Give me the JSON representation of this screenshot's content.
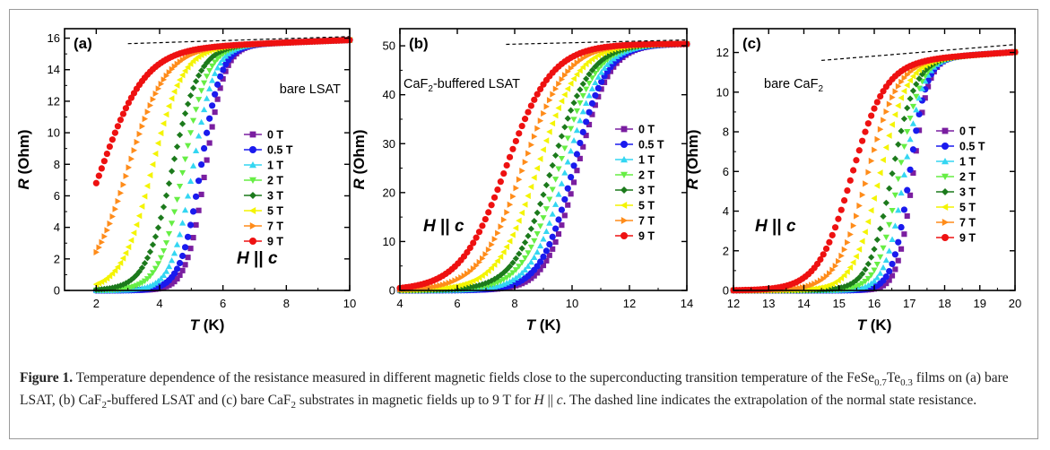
{
  "caption": {
    "label": "Figure 1.",
    "text": "Temperature dependence of the resistance measured in different magnetic fields close to the superconducting transition temperature of the FeSe0.7Te0.3 films on (a) bare LSAT, (b) CaF2-buffered LSAT and (c) bare CaF2 substrates in magnetic fields up to 9 T for H || c. The dashed line indicates the extrapolation of the normal state resistance."
  },
  "colors": {
    "0 T": "#7a1ea0",
    "0.5 T": "#1a1aee",
    "1 T": "#33d6f2",
    "2 T": "#66ee44",
    "3 T": "#1c7a1c",
    "5 T": "#f4f400",
    "7 T": "#ff8c1a",
    "9 T": "#ee1111"
  },
  "chart_data": [
    {
      "type": "scatter",
      "panel": "(a)",
      "annotation": "bare LSAT",
      "field_label": "H || c",
      "xlabel": "T (K)",
      "ylabel": "R (Ohm)",
      "xlim": [
        1,
        10
      ],
      "ylim": [
        0,
        16.6
      ],
      "xticks": [
        2,
        4,
        6,
        8,
        10
      ],
      "yticks": [
        0,
        2,
        4,
        6,
        8,
        10,
        12,
        14,
        16
      ],
      "legend": [
        "0 T",
        "0.5 T",
        "1 T",
        "2 T",
        "3 T",
        "5 T",
        "7 T",
        "9 T"
      ],
      "legend_position": "right",
      "x_start": 2.0,
      "x_end": 10,
      "series": [
        {
          "name": "0 T",
          "marker": "square",
          "Rn": 15.8,
          "Tmid": 5.45,
          "width": 0.3,
          "slope": 0.08
        },
        {
          "name": "0.5 T",
          "marker": "circle",
          "Rn": 15.8,
          "Tmid": 5.3,
          "width": 0.32,
          "slope": 0.08
        },
        {
          "name": "1 T",
          "marker": "triangle-up",
          "Rn": 15.8,
          "Tmid": 5.05,
          "width": 0.34,
          "slope": 0.08
        },
        {
          "name": "2 T",
          "marker": "triangle-down",
          "Rn": 15.8,
          "Tmid": 4.75,
          "width": 0.38,
          "slope": 0.08
        },
        {
          "name": "3 T",
          "marker": "diamond",
          "Rn": 15.8,
          "Tmid": 4.4,
          "width": 0.42,
          "slope": 0.08
        },
        {
          "name": "5 T",
          "marker": "triangle-left",
          "Rn": 15.8,
          "Tmid": 3.75,
          "width": 0.48,
          "slope": 0.08
        },
        {
          "name": "7 T",
          "marker": "triangle-right",
          "Rn": 15.8,
          "Tmid": 3.0,
          "width": 0.6,
          "slope": 0.08
        },
        {
          "name": "9 T",
          "marker": "circle",
          "Rn": 15.8,
          "Tmid": 2.15,
          "width": 0.7,
          "slope": 0.08
        }
      ],
      "extrapolation": {
        "x": [
          3,
          10
        ],
        "y": [
          15.65,
          16.1
        ]
      }
    },
    {
      "type": "scatter",
      "panel": "(b)",
      "annotation": "CaF2-buffered LSAT",
      "field_label": "H || c",
      "xlabel": "T (K)",
      "ylabel": "R (Ohm)",
      "xlim": [
        4,
        14
      ],
      "ylim": [
        0,
        53.5
      ],
      "xticks": [
        4,
        6,
        8,
        10,
        12,
        14
      ],
      "yticks": [
        0,
        10,
        20,
        30,
        40,
        50
      ],
      "legend": [
        "0 T",
        "0.5 T",
        "1 T",
        "2 T",
        "3 T",
        "5 T",
        "7 T",
        "9 T"
      ],
      "legend_position": "right",
      "x_start": 4.0,
      "x_end": 14,
      "series": [
        {
          "name": "0 T",
          "marker": "square",
          "Rn": 50.4,
          "Tmid": 10.2,
          "width": 0.55,
          "slope": 0.0
        },
        {
          "name": "0.5 T",
          "marker": "circle",
          "Rn": 50.4,
          "Tmid": 10.05,
          "width": 0.57,
          "slope": 0.0
        },
        {
          "name": "1 T",
          "marker": "triangle-up",
          "Rn": 50.4,
          "Tmid": 9.8,
          "width": 0.6,
          "slope": 0.0
        },
        {
          "name": "2 T",
          "marker": "triangle-down",
          "Rn": 50.4,
          "Tmid": 9.55,
          "width": 0.63,
          "slope": 0.0
        },
        {
          "name": "3 T",
          "marker": "diamond",
          "Rn": 50.4,
          "Tmid": 9.3,
          "width": 0.66,
          "slope": 0.0
        },
        {
          "name": "5 T",
          "marker": "triangle-left",
          "Rn": 50.4,
          "Tmid": 8.8,
          "width": 0.7,
          "slope": 0.0
        },
        {
          "name": "7 T",
          "marker": "triangle-right",
          "Rn": 50.4,
          "Tmid": 8.3,
          "width": 0.75,
          "slope": 0.0
        },
        {
          "name": "9 T",
          "marker": "circle",
          "Rn": 50.4,
          "Tmid": 7.7,
          "width": 0.8,
          "slope": 0.0
        }
      ],
      "extrapolation": {
        "x": [
          7.7,
          14
        ],
        "y": [
          50.3,
          51.2
        ]
      }
    },
    {
      "type": "scatter",
      "panel": "(c)",
      "annotation": "bare CaF2",
      "field_label": "H || c",
      "xlabel": "T (K)",
      "ylabel": "R (Ohm)",
      "xlim": [
        12,
        20
      ],
      "ylim": [
        0,
        13.2
      ],
      "xticks": [
        12,
        13,
        14,
        15,
        16,
        17,
        18,
        19,
        20
      ],
      "yticks": [
        0,
        2,
        4,
        6,
        8,
        10,
        12
      ],
      "legend": [
        "0 T",
        "0.5 T",
        "1 T",
        "2 T",
        "3 T",
        "5 T",
        "7 T",
        "9 T"
      ],
      "legend_position": "right",
      "x_start": 12.0,
      "x_end": 20,
      "series": [
        {
          "name": "0 T",
          "marker": "square",
          "Rn": 11.9,
          "Tmid": 17.1,
          "width": 0.22,
          "slope": 0.12
        },
        {
          "name": "0.5 T",
          "marker": "circle",
          "Rn": 11.9,
          "Tmid": 17.0,
          "width": 0.24,
          "slope": 0.12
        },
        {
          "name": "1 T",
          "marker": "triangle-up",
          "Rn": 11.9,
          "Tmid": 16.85,
          "width": 0.27,
          "slope": 0.12
        },
        {
          "name": "2 T",
          "marker": "triangle-down",
          "Rn": 11.9,
          "Tmid": 16.7,
          "width": 0.3,
          "slope": 0.12
        },
        {
          "name": "3 T",
          "marker": "diamond",
          "Rn": 11.9,
          "Tmid": 16.5,
          "width": 0.33,
          "slope": 0.12
        },
        {
          "name": "5 T",
          "marker": "triangle-left",
          "Rn": 11.9,
          "Tmid": 16.15,
          "width": 0.38,
          "slope": 0.12
        },
        {
          "name": "7 T",
          "marker": "triangle-right",
          "Rn": 11.9,
          "Tmid": 15.8,
          "width": 0.43,
          "slope": 0.12
        },
        {
          "name": "9 T",
          "marker": "circle",
          "Rn": 11.9,
          "Tmid": 15.35,
          "width": 0.48,
          "slope": 0.12
        }
      ],
      "extrapolation": {
        "x": [
          14.5,
          20
        ],
        "y": [
          11.6,
          12.4
        ]
      }
    }
  ]
}
